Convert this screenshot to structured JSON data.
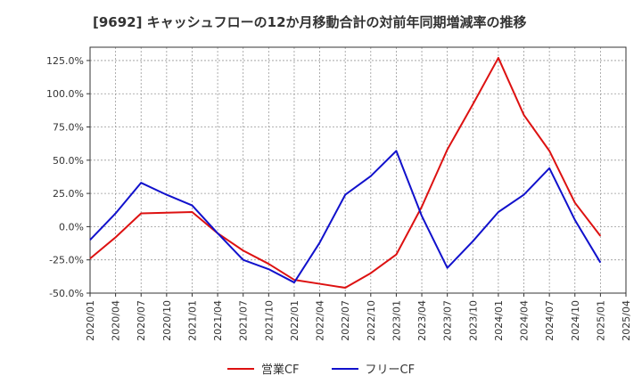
{
  "chart_data": {
    "type": "line",
    "title": "[9692]  キャッシュフローの12か月移動合計の対前年同期増減率の推移",
    "xlabel": "",
    "ylabel": "",
    "ylim": [
      -50,
      135
    ],
    "y_ticks": [
      {
        "value": 125,
        "label": "125.0%"
      },
      {
        "value": 100,
        "label": "100.0%"
      },
      {
        "value": 75,
        "label": "75.0%"
      },
      {
        "value": 50,
        "label": "50.0%"
      },
      {
        "value": 25,
        "label": "25.0%"
      },
      {
        "value": 0,
        "label": "0.0%"
      },
      {
        "value": -25,
        "label": "-25.0%"
      },
      {
        "value": -50,
        "label": "-50.0%"
      }
    ],
    "x_ticks": [
      "2020/01",
      "2020/04",
      "2020/07",
      "2020/10",
      "2021/01",
      "2021/04",
      "2021/07",
      "2021/10",
      "2022/01",
      "2022/04",
      "2022/07",
      "2022/10",
      "2023/01",
      "2023/04",
      "2023/07",
      "2023/10",
      "2024/01",
      "2024/04",
      "2024/07",
      "2024/10",
      "2025/01",
      "2025/04"
    ],
    "grid": true,
    "legend_position": "bottom",
    "series": [
      {
        "name": "営業CF",
        "color": "#dd1111",
        "points": [
          {
            "x": "2020/01",
            "y": -24
          },
          {
            "x": "2020/04",
            "y": -8
          },
          {
            "x": "2020/07",
            "y": 10
          },
          {
            "x": "2020/10",
            "y": 10.5
          },
          {
            "x": "2021/01",
            "y": 11
          },
          {
            "x": "2021/04",
            "y": -5
          },
          {
            "x": "2021/07",
            "y": -18
          },
          {
            "x": "2021/10",
            "y": -28
          },
          {
            "x": "2022/01",
            "y": -40
          },
          {
            "x": "2022/04",
            "y": -43
          },
          {
            "x": "2022/07",
            "y": -46
          },
          {
            "x": "2022/10",
            "y": -35
          },
          {
            "x": "2023/01",
            "y": -21
          },
          {
            "x": "2023/04",
            "y": 15
          },
          {
            "x": "2023/07",
            "y": 58
          },
          {
            "x": "2023/10",
            "y": 92
          },
          {
            "x": "2024/01",
            "y": 127
          },
          {
            "x": "2024/04",
            "y": 84
          },
          {
            "x": "2024/07",
            "y": 57
          },
          {
            "x": "2024/10",
            "y": 18
          },
          {
            "x": "2025/01",
            "y": -7
          }
        ]
      },
      {
        "name": "フリーCF",
        "color": "#1111cc",
        "points": [
          {
            "x": "2020/01",
            "y": -10
          },
          {
            "x": "2020/04",
            "y": 10
          },
          {
            "x": "2020/07",
            "y": 33
          },
          {
            "x": "2020/10",
            "y": 24
          },
          {
            "x": "2021/01",
            "y": 16
          },
          {
            "x": "2021/04",
            "y": -5
          },
          {
            "x": "2021/07",
            "y": -25
          },
          {
            "x": "2021/10",
            "y": -32
          },
          {
            "x": "2022/01",
            "y": -42
          },
          {
            "x": "2022/04",
            "y": -12
          },
          {
            "x": "2022/07",
            "y": 24
          },
          {
            "x": "2022/10",
            "y": 38
          },
          {
            "x": "2023/01",
            "y": 57
          },
          {
            "x": "2023/04",
            "y": 8
          },
          {
            "x": "2023/07",
            "y": -31
          },
          {
            "x": "2023/10",
            "y": -11
          },
          {
            "x": "2024/01",
            "y": 11
          },
          {
            "x": "2024/04",
            "y": 24
          },
          {
            "x": "2024/07",
            "y": 44
          },
          {
            "x": "2024/10",
            "y": 5
          },
          {
            "x": "2025/01",
            "y": -27
          }
        ]
      }
    ]
  }
}
